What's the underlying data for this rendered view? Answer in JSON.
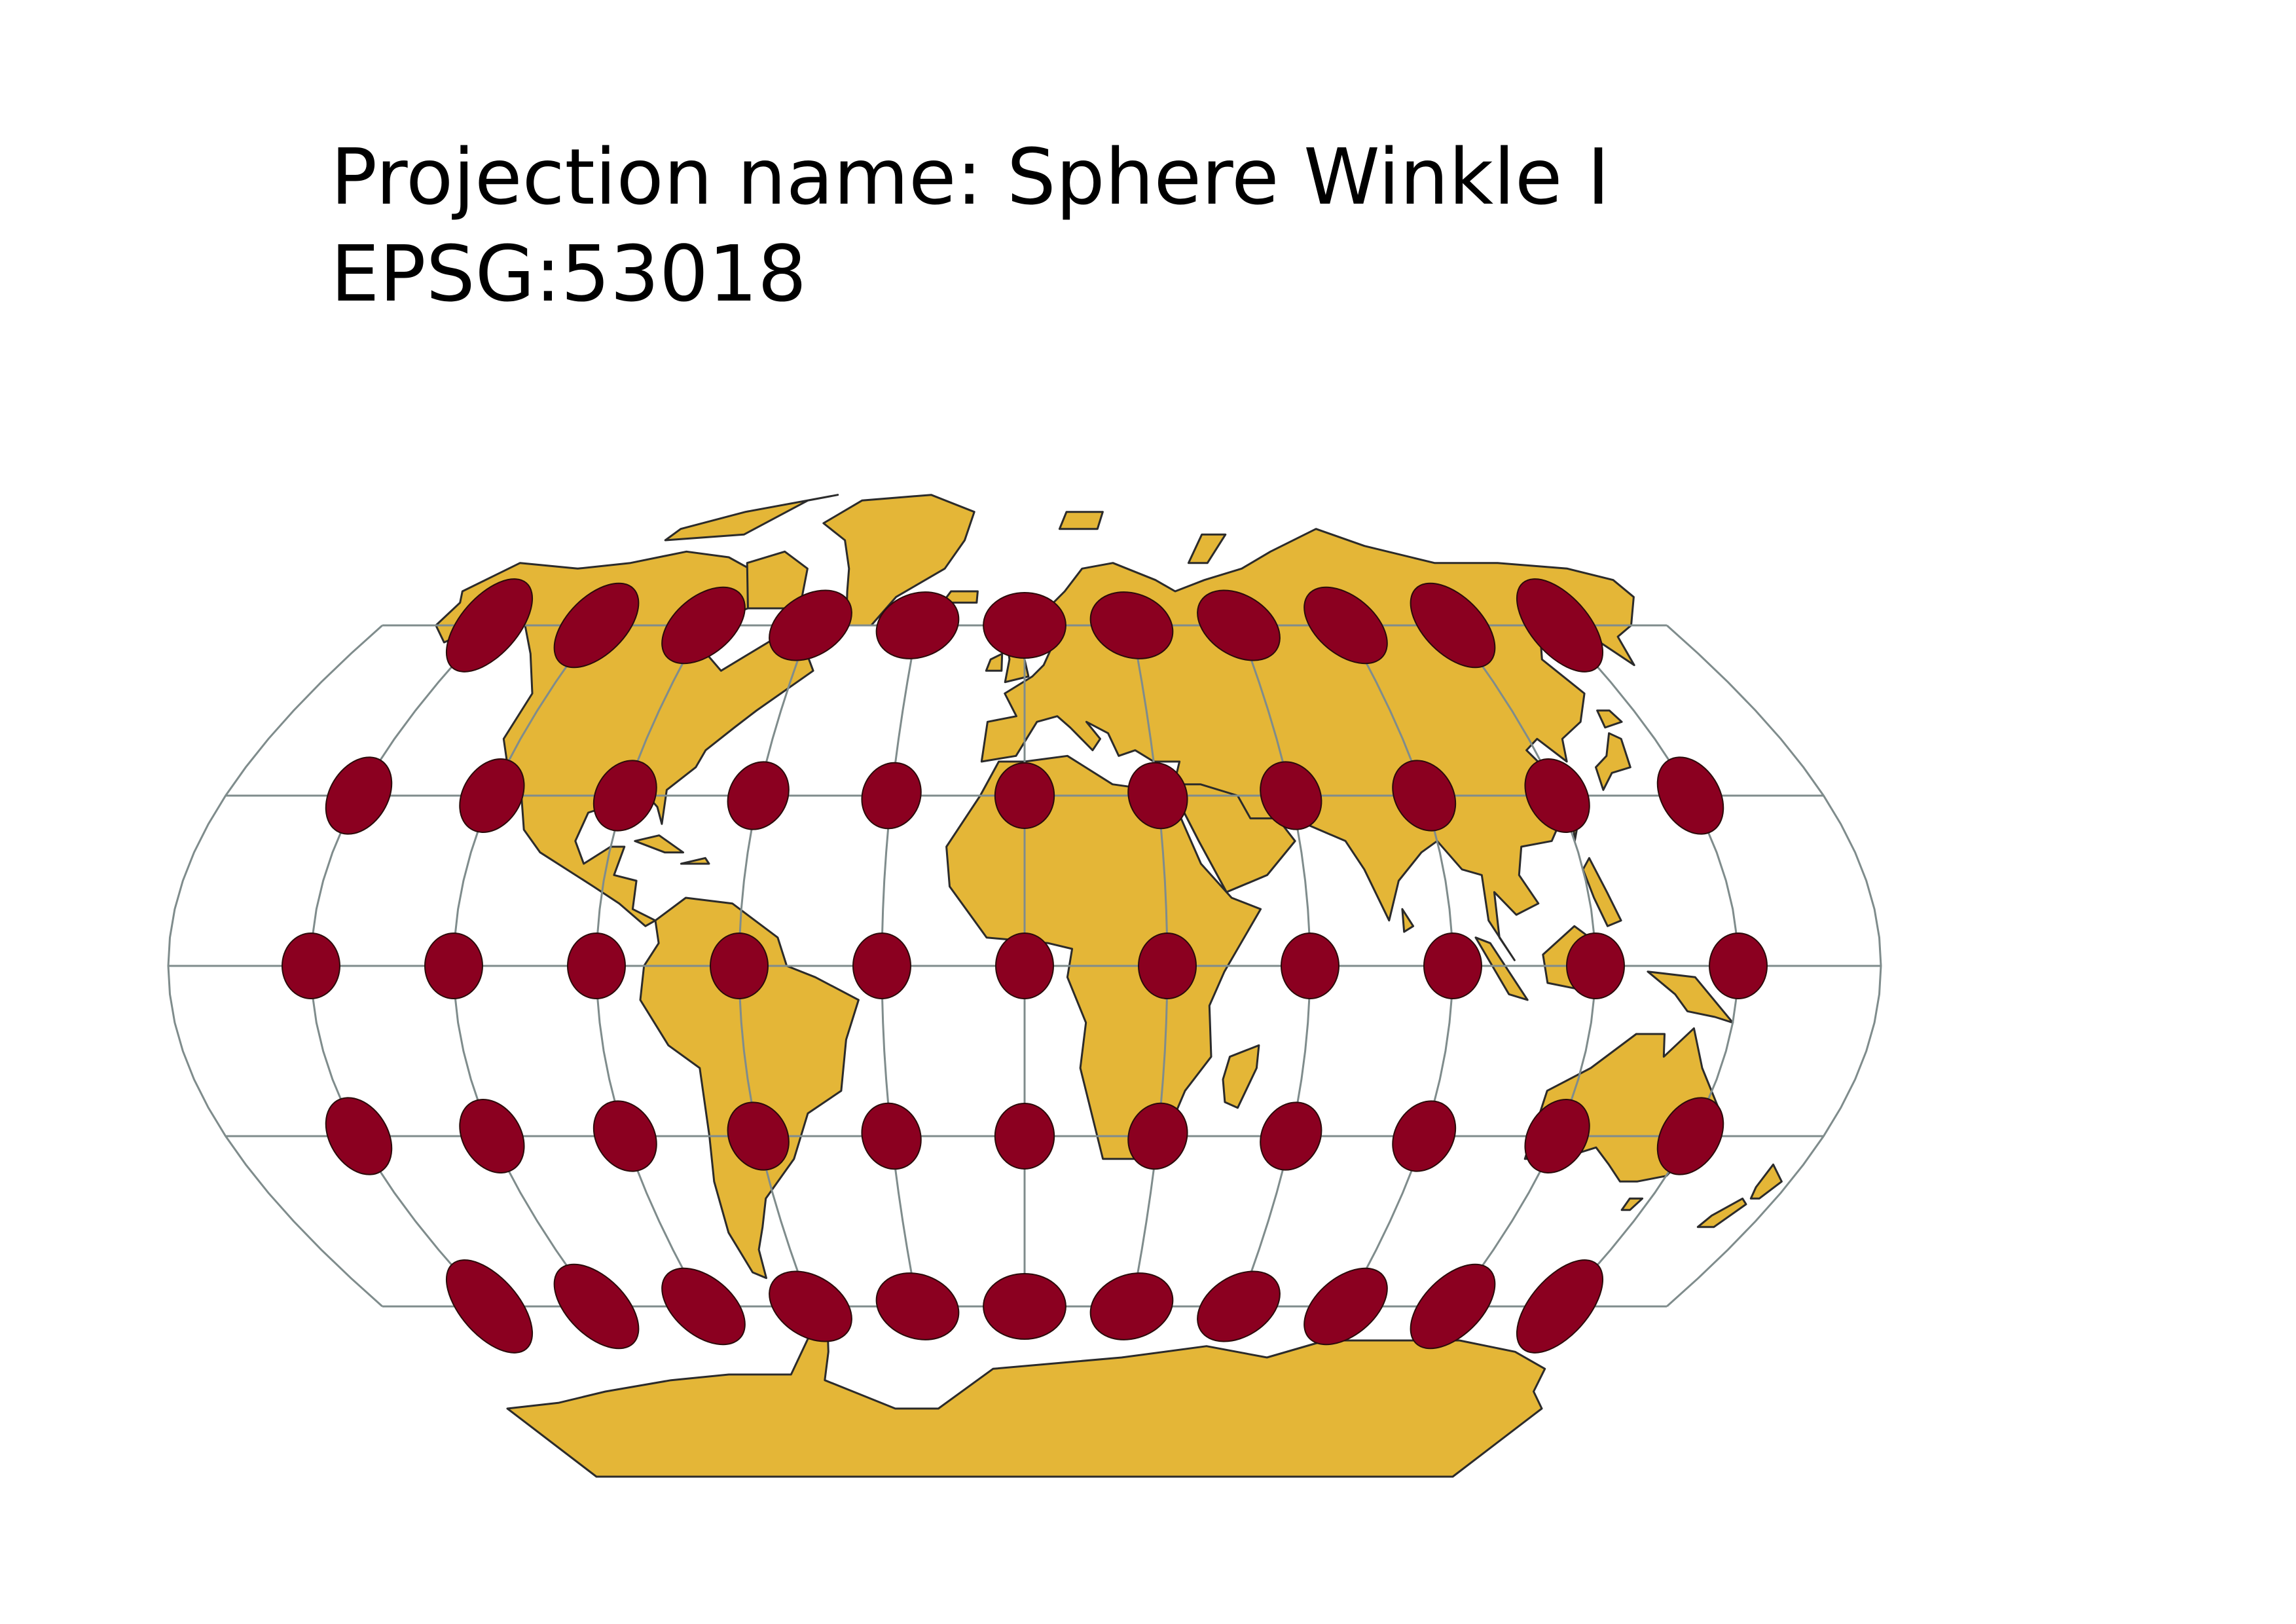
{
  "header": {
    "projection_line": "Projection name: Sphere Winkle I",
    "epsg_line": "EPSG:53018"
  },
  "colors": {
    "land": "#e4b637",
    "land_stroke": "#2b2b2b",
    "graticule": "#7f8c8c",
    "indicatrix": "#8b0020",
    "background": "#ffffff"
  },
  "map": {
    "projection": "Winkel I",
    "graticule_step_deg": 30,
    "indicatrix": {
      "latitudes": [
        60,
        30,
        0,
        -30,
        -60
      ],
      "longitudes": [
        -150,
        -120,
        -90,
        -60,
        -30,
        0,
        30,
        60,
        90,
        120,
        150
      ]
    }
  }
}
